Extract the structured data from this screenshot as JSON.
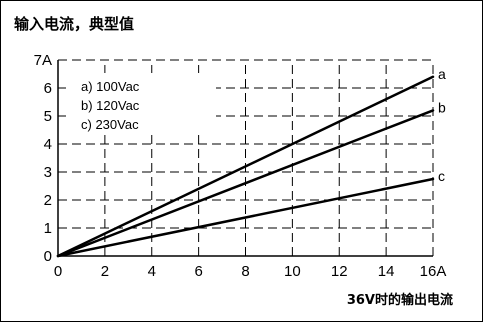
{
  "title": "输入电流，典型值",
  "chart_data": {
    "type": "line",
    "title": "输入电流，典型值",
    "xlabel": "36V时的输出电流",
    "ylabel": "",
    "xlim": [
      0,
      16
    ],
    "ylim": [
      0,
      7
    ],
    "x_ticks": [
      0,
      2,
      4,
      6,
      8,
      10,
      12,
      14,
      16
    ],
    "x_tick_labels": [
      "0",
      "2",
      "4",
      "6",
      "8",
      "10",
      "12",
      "14",
      "16A"
    ],
    "y_ticks": [
      0,
      1,
      2,
      3,
      4,
      5,
      6,
      7
    ],
    "y_tick_labels": [
      "0",
      "1",
      "2",
      "3",
      "4",
      "5",
      "6",
      "7A"
    ],
    "grid": true,
    "grid_style": "dashed",
    "legend": [
      "a) 100Vac",
      "b) 120Vac",
      "c) 230Vac"
    ],
    "legend_position": "top-left",
    "series": [
      {
        "name": "a",
        "x": [
          0,
          16
        ],
        "values": [
          0,
          6.4
        ]
      },
      {
        "name": "b",
        "x": [
          0,
          16
        ],
        "values": [
          0,
          5.2
        ]
      },
      {
        "name": "c",
        "x": [
          0,
          16
        ],
        "values": [
          0,
          2.75
        ]
      }
    ]
  }
}
